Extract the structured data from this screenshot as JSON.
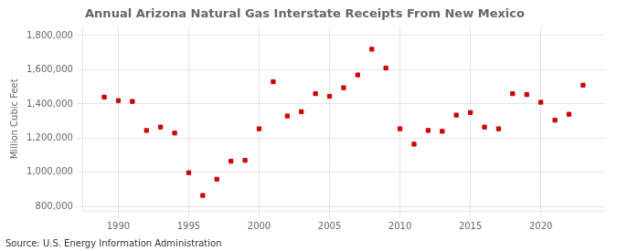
{
  "chart_data": {
    "type": "scatter",
    "title": "Annual Arizona Natural Gas Interstate Receipts From New Mexico",
    "ylabel": "Million Cubic Feet",
    "annotations": [
      "Source: U.S. Energy Information Administration"
    ],
    "x": [
      1989,
      1990,
      1991,
      1992,
      1993,
      1994,
      1995,
      1996,
      1997,
      1998,
      1999,
      2000,
      2001,
      2002,
      2003,
      2004,
      2005,
      2006,
      2007,
      2008,
      2009,
      2010,
      2011,
      2012,
      2013,
      2014,
      2015,
      2016,
      2017,
      2018,
      2019,
      2020,
      2021,
      2022,
      2023
    ],
    "values": [
      1440000,
      1420000,
      1415000,
      1245000,
      1265000,
      1230000,
      998000,
      865000,
      960000,
      1065000,
      1070000,
      1255000,
      1530000,
      1330000,
      1355000,
      1460000,
      1445000,
      1495000,
      1570000,
      1720000,
      1610000,
      1255000,
      1165000,
      1245000,
      1240000,
      1335000,
      1350000,
      1265000,
      1255000,
      1460000,
      1455000,
      1410000,
      1305000,
      1340000,
      1510000
    ],
    "color": "#cc0000",
    "marker": "square",
    "xlim": [
      1987.5,
      2024.5
    ],
    "xticks": [
      1990,
      1995,
      2000,
      2005,
      2010,
      2015,
      2020
    ],
    "ylim": [
      775000,
      1850000
    ],
    "yticks": [
      {
        "value": 800000,
        "label": "800,000"
      },
      {
        "value": 1000000,
        "label": "1,000,000"
      },
      {
        "value": 1200000,
        "label": "1,200,000"
      },
      {
        "value": 1400000,
        "label": "1,400,000"
      },
      {
        "value": 1600000,
        "label": "1,600,000"
      },
      {
        "value": 1800000,
        "label": "1,800,000"
      }
    ],
    "grid": true
  }
}
